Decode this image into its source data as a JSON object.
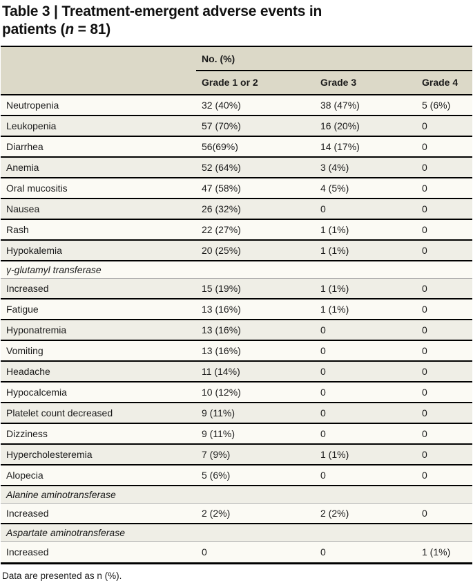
{
  "title": {
    "line1": "Table 3 | Treatment-emergent adverse events in",
    "line2_prefix": "patients (",
    "line2_italic": "n",
    "line2_suffix": " = 81)"
  },
  "table": {
    "group_header": "No. (%)",
    "columns": [
      "Grade 1 or 2",
      "Grade 3",
      "Grade 4"
    ],
    "rows": [
      {
        "type": "data",
        "label": "Neutropenia",
        "g1_2": "32 (40%)",
        "g3": "38 (47%)",
        "g4": "5 (6%)"
      },
      {
        "type": "data",
        "label": "Leukopenia",
        "g1_2": "57 (70%)",
        "g3": "16 (20%)",
        "g4": "0"
      },
      {
        "type": "data",
        "label": "Diarrhea",
        "g1_2": "56(69%)",
        "g3": "14 (17%)",
        "g4": "0"
      },
      {
        "type": "data",
        "label": "Anemia",
        "g1_2": "52 (64%)",
        "g3": "3 (4%)",
        "g4": "0"
      },
      {
        "type": "data",
        "label": "Oral mucositis",
        "g1_2": "47 (58%)",
        "g3": "4 (5%)",
        "g4": "0"
      },
      {
        "type": "data",
        "label": "Nausea",
        "g1_2": "26 (32%)",
        "g3": "0",
        "g4": "0"
      },
      {
        "type": "data",
        "label": "Rash",
        "g1_2": "22 (27%)",
        "g3": "1 (1%)",
        "g4": "0"
      },
      {
        "type": "data",
        "label": "Hypokalemia",
        "g1_2": "20 (25%)",
        "g3": "1 (1%)",
        "g4": "0"
      },
      {
        "type": "section",
        "label": "γ-glutamyl transferase"
      },
      {
        "type": "data",
        "label": "Increased",
        "g1_2": "15 (19%)",
        "g3": "1 (1%)",
        "g4": "0"
      },
      {
        "type": "data",
        "label": "Fatigue",
        "g1_2": "13 (16%)",
        "g3": "1 (1%)",
        "g4": "0"
      },
      {
        "type": "data",
        "label": "Hyponatremia",
        "g1_2": "13 (16%)",
        "g3": "0",
        "g4": "0"
      },
      {
        "type": "data",
        "label": "Vomiting",
        "g1_2": "13 (16%)",
        "g3": "0",
        "g4": "0"
      },
      {
        "type": "data",
        "label": "Headache",
        "g1_2": "11 (14%)",
        "g3": "0",
        "g4": "0"
      },
      {
        "type": "data",
        "label": "Hypocalcemia",
        "g1_2": "10 (12%)",
        "g3": "0",
        "g4": "0"
      },
      {
        "type": "data",
        "label": "Platelet count decreased",
        "g1_2": "9 (11%)",
        "g3": "0",
        "g4": "0"
      },
      {
        "type": "data",
        "label": "Dizziness",
        "g1_2": "9 (11%)",
        "g3": "0",
        "g4": "0"
      },
      {
        "type": "data",
        "label": "Hypercholesteremia",
        "g1_2": "7 (9%)",
        "g3": "1 (1%)",
        "g4": "0"
      },
      {
        "type": "data",
        "label": "Alopecia",
        "g1_2": "5 (6%)",
        "g3": "0",
        "g4": "0"
      },
      {
        "type": "section",
        "label": "Alanine aminotransferase"
      },
      {
        "type": "data",
        "label": "Increased",
        "g1_2": "2 (2%)",
        "g3": "2 (2%)",
        "g4": "0"
      },
      {
        "type": "section",
        "label": "Aspartate aminotransferase"
      },
      {
        "type": "data",
        "label": "Increased",
        "g1_2": "0",
        "g3": "0",
        "g4": "1 (1%)"
      }
    ]
  },
  "footnote": "Data are presented as n (%).",
  "colors": {
    "header_bg": "#dcd9c8",
    "row_light": "#fbfaf4",
    "row_dark": "#efeee6",
    "rule_black": "#000000",
    "rule_gray": "#a9a9a9"
  }
}
